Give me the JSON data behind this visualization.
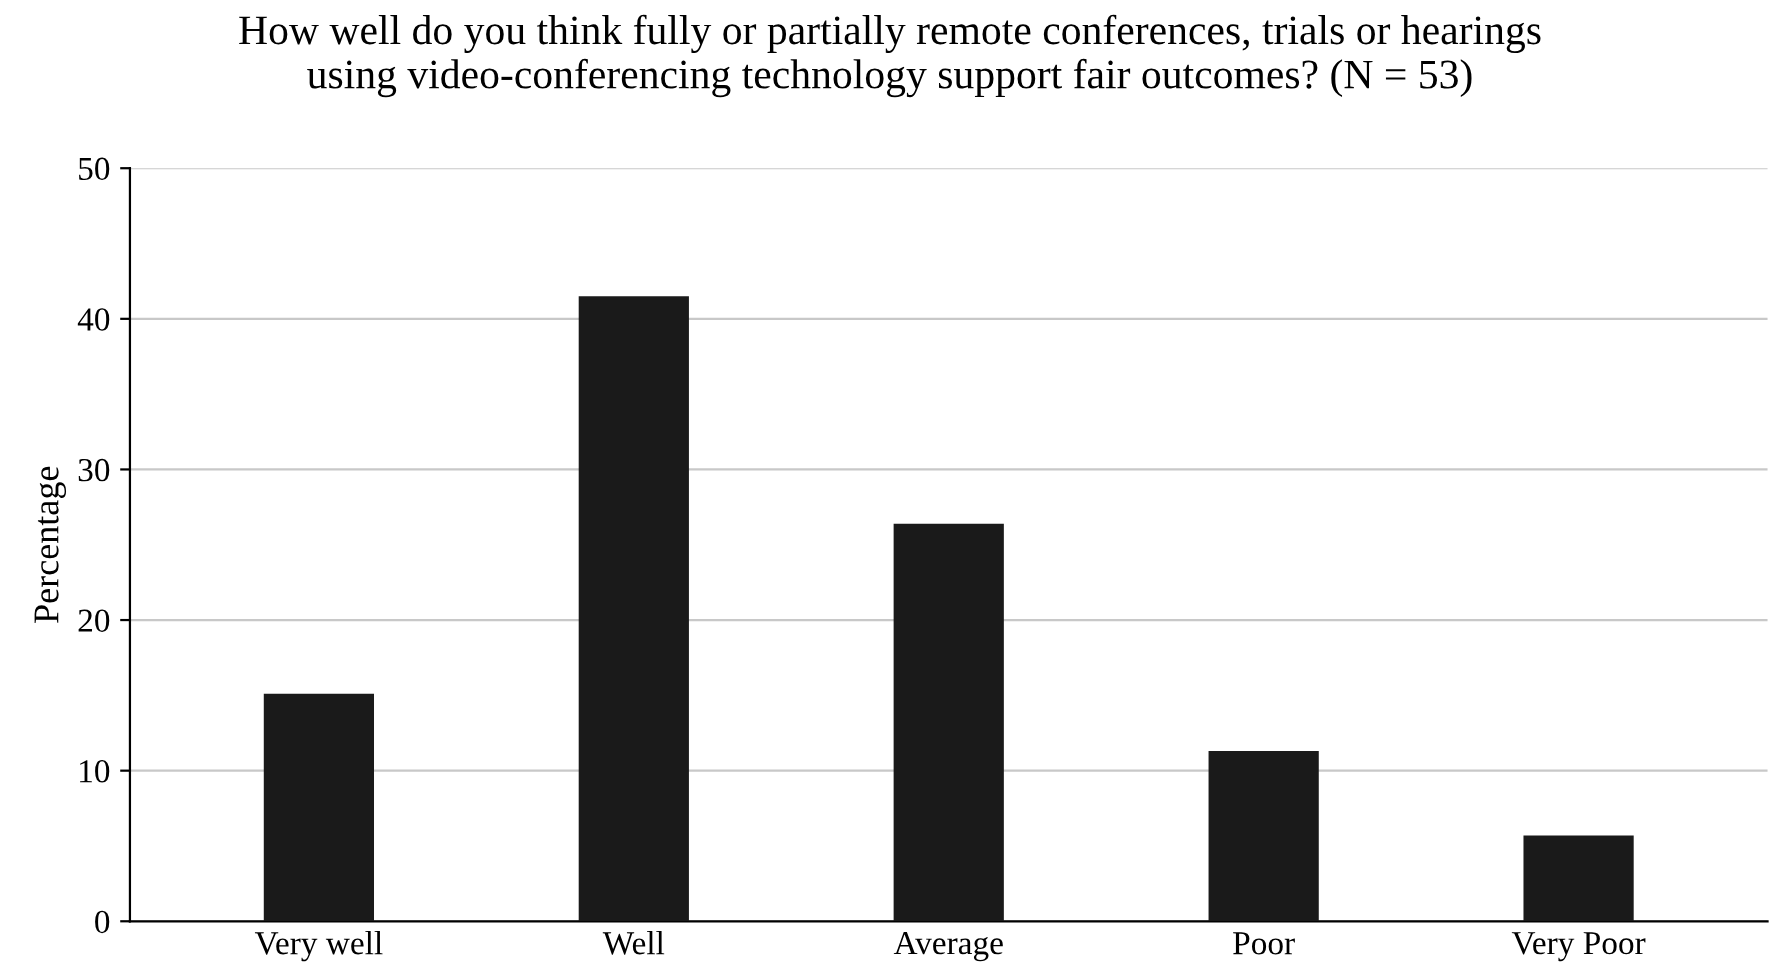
{
  "chart_data": {
    "type": "bar",
    "title": "How well do you think fully or partially remote conferences, trials or hearings\nusing video-conferencing technology support fair outcomes? (N = 53)",
    "ylabel": "Percentage",
    "categories": [
      "Very well",
      "Well",
      "Average",
      "Poor",
      "Very Poor"
    ],
    "values": [
      15.1,
      41.5,
      26.4,
      11.3,
      5.7
    ],
    "color": "#1a1a1a",
    "ylim": [
      0,
      50
    ],
    "yticks": [
      0,
      10,
      20,
      30,
      40,
      50
    ],
    "grid": "y"
  }
}
